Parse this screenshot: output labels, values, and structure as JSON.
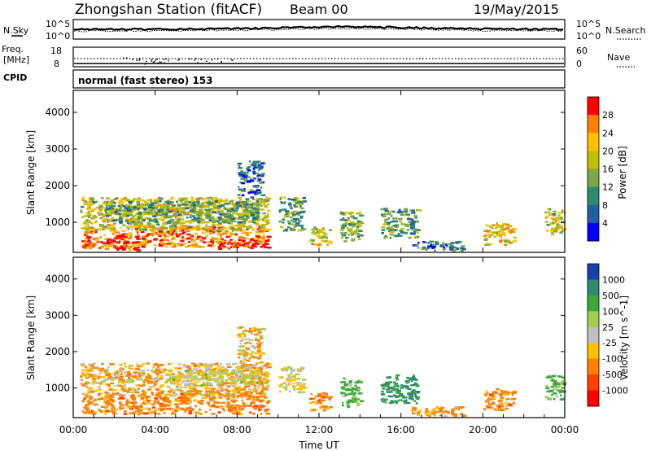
{
  "header": {
    "station": "Zhongshan Station (fitACF)",
    "beam": "Beam 00",
    "date": "19/May/2015"
  },
  "panels": {
    "nsky": {
      "label": "N.Sky",
      "ticks_left": [
        "10^5",
        "10^0"
      ],
      "ticks_right": [
        "10^5",
        "10^0"
      ],
      "right_label": "N.Search"
    },
    "freq": {
      "label": "Freq.",
      "unit": "[MHz]",
      "ticks_left": [
        "18",
        "8"
      ],
      "ticks_right": [
        "60",
        "0"
      ],
      "right_label": "Nave"
    },
    "cpid": {
      "label": "CPID",
      "mode": "normal (fast stereo) 153"
    }
  },
  "chart_data": [
    {
      "type": "heatmap",
      "title": "Power",
      "ylabel": "Slant Range [km]",
      "xlabel": "Time UT",
      "x_ticks": [
        "00:00",
        "04:00",
        "08:00",
        "12:00",
        "16:00",
        "20:00",
        "00:00"
      ],
      "xlim_hours": [
        0,
        24
      ],
      "y_ticks": [
        1000,
        2000,
        3000,
        4000
      ],
      "ylim": [
        180,
        4600
      ],
      "colorbar": {
        "label": "Power [dB]",
        "ticks": [
          "28",
          "24",
          "20",
          "16",
          "12",
          "8",
          "4"
        ],
        "colors": [
          "#ff0000",
          "#ff8000",
          "#ffc000",
          "#c0c000",
          "#7aa848",
          "#2f8a6e",
          "#2060a0",
          "#0000ff"
        ]
      },
      "clusters": [
        {
          "t0": 0.4,
          "t1": 2.8,
          "r0": 300,
          "r1": 800,
          "power": 26
        },
        {
          "t0": 2.0,
          "t1": 3.2,
          "r0": 250,
          "r1": 500,
          "power": 30
        },
        {
          "t0": 3.0,
          "t1": 9.5,
          "r0": 350,
          "r1": 900,
          "power": 26
        },
        {
          "t0": 7.0,
          "t1": 9.6,
          "r0": 300,
          "r1": 550,
          "power": 30
        },
        {
          "t0": 0.3,
          "t1": 9.5,
          "r0": 800,
          "r1": 1700,
          "power": 18
        },
        {
          "t0": 1.5,
          "t1": 9.0,
          "r0": 1000,
          "r1": 1600,
          "power": 12
        },
        {
          "t0": 8.0,
          "t1": 9.2,
          "r0": 1700,
          "r1": 2700,
          "power": 7
        },
        {
          "t0": 10.0,
          "t1": 11.2,
          "r0": 800,
          "r1": 1700,
          "power": 12
        },
        {
          "t0": 11.5,
          "t1": 12.5,
          "r0": 400,
          "r1": 900,
          "power": 18
        },
        {
          "t0": 13.0,
          "t1": 14.0,
          "r0": 500,
          "r1": 1300,
          "power": 14
        },
        {
          "t0": 15.0,
          "t1": 16.8,
          "r0": 600,
          "r1": 1400,
          "power": 12
        },
        {
          "t0": 16.5,
          "t1": 19.0,
          "r0": 250,
          "r1": 500,
          "power": 8
        },
        {
          "t0": 20.0,
          "t1": 21.5,
          "r0": 400,
          "r1": 1000,
          "power": 20
        },
        {
          "t0": 23.0,
          "t1": 23.9,
          "r0": 700,
          "r1": 1400,
          "power": 18
        }
      ]
    },
    {
      "type": "heatmap",
      "title": "Velocity",
      "ylabel": "Slant Range [km]",
      "xlabel": "Time UT",
      "x_ticks": [
        "00:00",
        "04:00",
        "08:00",
        "12:00",
        "16:00",
        "20:00",
        "00:00"
      ],
      "xlim_hours": [
        0,
        24
      ],
      "y_ticks": [
        1000,
        2000,
        3000,
        4000
      ],
      "ylim": [
        180,
        4600
      ],
      "colorbar": {
        "label": "Velocity [m s^-1]",
        "ticks": [
          "1000",
          "500",
          "100",
          "25",
          "-25",
          "-100",
          "-500",
          "-1000"
        ],
        "colors": [
          "#1a3fa8",
          "#2f8a6e",
          "#3aa83a",
          "#a0d050",
          "#c0c0c0",
          "#ffc000",
          "#ff8000",
          "#ff4000",
          "#ff0000"
        ]
      },
      "clusters": [
        {
          "t0": 0.4,
          "t1": 9.5,
          "r0": 300,
          "r1": 900,
          "vel": -300
        },
        {
          "t0": 0.3,
          "t1": 9.5,
          "r0": 800,
          "r1": 1700,
          "vel": -80
        },
        {
          "t0": 4.5,
          "t1": 9.0,
          "r0": 1100,
          "r1": 1500,
          "vel": 10
        },
        {
          "t0": 8.0,
          "t1": 9.2,
          "r0": 1700,
          "r1": 2700,
          "vel": -60
        },
        {
          "t0": 10.0,
          "t1": 11.2,
          "r0": 900,
          "r1": 1600,
          "vel": 0
        },
        {
          "t0": 11.5,
          "t1": 12.5,
          "r0": 400,
          "r1": 900,
          "vel": -300
        },
        {
          "t0": 13.0,
          "t1": 14.0,
          "r0": 500,
          "r1": 1300,
          "vel": 200
        },
        {
          "t0": 15.0,
          "t1": 16.8,
          "r0": 600,
          "r1": 1400,
          "vel": 600
        },
        {
          "t0": 16.5,
          "t1": 19.0,
          "r0": 250,
          "r1": 500,
          "vel": -200
        },
        {
          "t0": 20.0,
          "t1": 21.5,
          "r0": 400,
          "r1": 1000,
          "vel": -300
        },
        {
          "t0": 23.0,
          "t1": 23.9,
          "r0": 700,
          "r1": 1400,
          "vel": 150
        }
      ]
    }
  ]
}
